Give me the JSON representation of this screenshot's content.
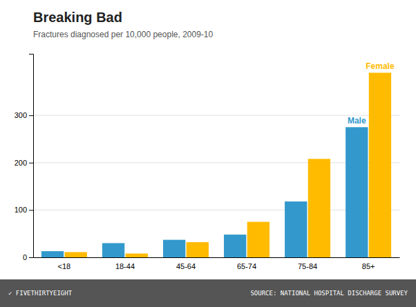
{
  "chart_data": {
    "type": "bar",
    "title": "Breaking Bad",
    "subtitle": "Fractures diagnosed per 10,000 people, 2009-10",
    "categories": [
      "<18",
      "18-44",
      "45-64",
      "65-74",
      "75-84",
      "85+"
    ],
    "series": [
      {
        "name": "Male",
        "color": "#3399CC",
        "values": [
          13,
          30,
          37,
          48,
          118,
          275
        ]
      },
      {
        "name": "Female",
        "color": "#FFBB00",
        "values": [
          11,
          8,
          32,
          75,
          208,
          390
        ]
      }
    ],
    "ylim": [
      0,
      430
    ],
    "yticks": [
      0,
      100,
      200,
      300
    ],
    "grid": true,
    "annotations": [
      "✓ FIVETHIRTYEIGHT",
      "SOURCE: NATIONAL HOSPITAL DISCHARGE SURVEY"
    ]
  }
}
